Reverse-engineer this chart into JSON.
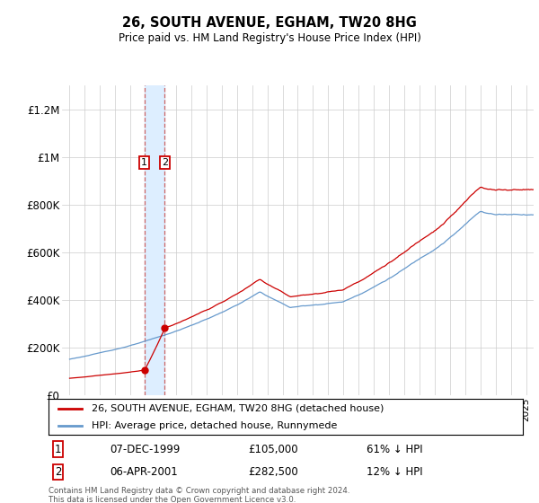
{
  "title": "26, SOUTH AVENUE, EGHAM, TW20 8HG",
  "subtitle": "Price paid vs. HM Land Registry's House Price Index (HPI)",
  "legend_line1": "26, SOUTH AVENUE, EGHAM, TW20 8HG (detached house)",
  "legend_line2": "HPI: Average price, detached house, Runnymede",
  "transaction1_date": "07-DEC-1999",
  "transaction1_price": "£105,000",
  "transaction1_hpi": "61% ↓ HPI",
  "transaction2_date": "06-APR-2001",
  "transaction2_price": "£282,500",
  "transaction2_hpi": "12% ↓ HPI",
  "footer": "Contains HM Land Registry data © Crown copyright and database right 2024.\nThis data is licensed under the Open Government Licence v3.0.",
  "hpi_color": "#6699cc",
  "price_color": "#cc0000",
  "highlight_color": "#ddeeff",
  "dashed_color": "#cc6666",
  "marker_color": "#cc0000",
  "ylim": [
    0,
    1300000
  ],
  "yticks": [
    0,
    200000,
    400000,
    600000,
    800000,
    1000000,
    1200000
  ],
  "ytick_labels": [
    "£0",
    "£200K",
    "£400K",
    "£600K",
    "£800K",
    "£1M",
    "£1.2M"
  ],
  "t1_year": 1999.917,
  "t2_year": 2001.25,
  "t1_price": 105000,
  "t2_price": 282500,
  "xmin": 1994.5,
  "xmax": 2025.5
}
